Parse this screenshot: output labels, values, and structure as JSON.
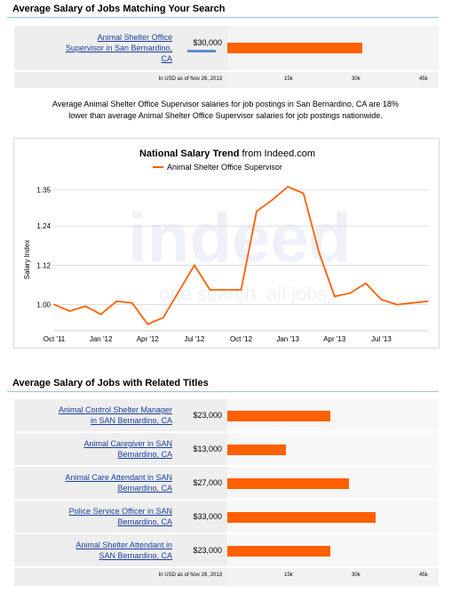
{
  "section1": {
    "title": "Average Salary of Jobs Matching Your Search",
    "row": {
      "title_line1": "Animal Shelter Office",
      "title_line2": "Supervisor in San Bernardino,",
      "title_line3": "CA",
      "value": "$30,000",
      "amount": 30000
    },
    "axis": {
      "note": "In USD as of Nov 26, 2013",
      "ticks": [
        "15k",
        "30k",
        "45k"
      ]
    }
  },
  "summary": {
    "line1": "Average Animal Shelter Office Supervisor salaries for job postings in San Bernardino, CA are 18%",
    "line2": "lower than average Animal Shelter Office Supervisor salaries for job postings nationwide."
  },
  "trend": {
    "title_bold": "National Salary Trend",
    "title_rest": " from Indeed.com",
    "watermark_main": "indeed",
    "watermark_sub": "one search. all jobs.",
    "colors": {
      "line": "#ff6000",
      "grid": "#dddddd"
    }
  },
  "section2": {
    "title": "Average Salary of Jobs with Related Titles",
    "rows": [
      {
        "line1": "Animal Control Shelter Manager",
        "line2": "in SAN Bernardino, CA",
        "value": "$23,000",
        "amount": 23000
      },
      {
        "line1": "Animal Caregiver in SAN",
        "line2": "Bernardino, CA",
        "value": "$13,000",
        "amount": 13000
      },
      {
        "line1": "Animal Care Attendant in SAN",
        "line2": "Bernardino, CA",
        "value": "$27,000",
        "amount": 27000
      },
      {
        "line1": "Police Service Officer in SAN",
        "line2": "Bernardino, CA",
        "value": "$33,000",
        "amount": 33000
      },
      {
        "line1": "Animal Shelter Attendant in",
        "line2": "SAN Bernardino, CA",
        "value": "$23,000",
        "amount": 23000
      }
    ],
    "axis": {
      "note": "In USD as of Nov 26, 2013",
      "ticks": [
        "15k",
        "30k",
        "45k"
      ]
    }
  },
  "chart_data": [
    {
      "type": "line",
      "title": "National Salary Trend from Indeed.com",
      "ylabel": "Salary Index",
      "xlabel": "",
      "ylim": [
        0.92,
        1.39
      ],
      "yticks": [
        1.0,
        1.12,
        1.24,
        1.35
      ],
      "ytick_labels": [
        "1.00",
        "1.12",
        "1.24",
        "1.35"
      ],
      "xtick_labels": [
        "Oct '11",
        "Jan '12",
        "Apr '12",
        "Jul '12",
        "Oct '12",
        "Jan '13",
        "Apr '13",
        "Jul '13"
      ],
      "legend": "top-center",
      "grid": true,
      "series": [
        {
          "name": "Animal Shelter Office Supervisor",
          "color": "#ff6000",
          "x": [
            "2011-10",
            "2011-11",
            "2011-12",
            "2012-01",
            "2012-02",
            "2012-03",
            "2012-04",
            "2012-05",
            "2012-06",
            "2012-07",
            "2012-08",
            "2012-09",
            "2012-10",
            "2012-11",
            "2012-12",
            "2013-01",
            "2013-02",
            "2013-03",
            "2013-04",
            "2013-05",
            "2013-06",
            "2013-07",
            "2013-08",
            "2013-09",
            "2013-10"
          ],
          "values": [
            1.0,
            0.98,
            0.995,
            0.97,
            1.01,
            1.005,
            0.94,
            0.96,
            1.04,
            1.12,
            1.045,
            1.045,
            1.045,
            1.285,
            1.32,
            1.36,
            1.34,
            1.16,
            1.025,
            1.035,
            1.065,
            1.015,
            1.0,
            1.005,
            1.01
          ]
        }
      ]
    },
    {
      "type": "bar",
      "title": "Average Salary of Jobs Matching Your Search",
      "categories": [
        "Animal Shelter Office Supervisor in San Bernardino, CA"
      ],
      "values": [
        30000
      ],
      "xlim": [
        0,
        47000
      ],
      "ticks": [
        "15k",
        "30k",
        "45k"
      ]
    },
    {
      "type": "bar",
      "title": "Average Salary of Jobs with Related Titles",
      "categories": [
        "Animal Control Shelter Manager in SAN Bernardino, CA",
        "Animal Caregiver in SAN Bernardino, CA",
        "Animal Care Attendant in SAN Bernardino, CA",
        "Police Service Officer in SAN Bernardino, CA",
        "Animal Shelter Attendant in SAN Bernardino, CA"
      ],
      "values": [
        23000,
        13000,
        27000,
        33000,
        23000
      ],
      "xlim": [
        0,
        47000
      ],
      "ticks": [
        "15k",
        "30k",
        "45k"
      ]
    }
  ]
}
